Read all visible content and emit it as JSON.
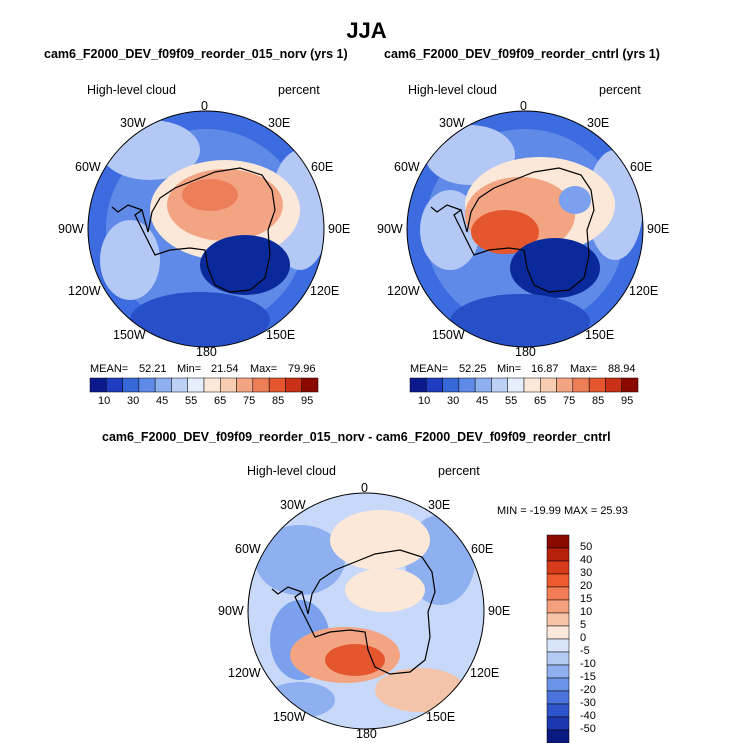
{
  "figure_title": "JJA",
  "colors": {
    "deep_blue": "#0a2a9c",
    "mid_blue": "#3c6ce0",
    "light_blue": "#b4c8f5",
    "cream": "#fbe8d8",
    "light_red": "#f3a583",
    "mid_red": "#e4572e",
    "dark_red": "#8b0a00"
  },
  "panels": [
    {
      "case_title": "cam6_F2000_DEV_f09f09_reorder_015_norv (yrs 1)",
      "variable": "High-level cloud",
      "units": "percent",
      "stats": {
        "mean_label": "MEAN=",
        "mean": "52.21",
        "min_label": "Min=",
        "min": "21.54",
        "max_label": "Max=",
        "max": "79.96"
      },
      "colorbar_labels": [
        "10",
        "30",
        "45",
        "55",
        "65",
        "75",
        "85",
        "95"
      ]
    },
    {
      "case_title": "cam6_F2000_DEV_f09f09_reorder_cntrl (yrs 1)",
      "variable": "High-level cloud",
      "units": "percent",
      "stats": {
        "mean_label": "MEAN=",
        "mean": "52.25",
        "min_label": "Min=",
        "min": "16.87",
        "max_label": "Max=",
        "max": "88.94"
      },
      "colorbar_labels": [
        "10",
        "30",
        "45",
        "55",
        "65",
        "75",
        "85",
        "95"
      ]
    },
    {
      "case_title": "cam6_F2000_DEV_f09f09_reorder_015_norv - cam6_F2000_DEV_f09f09_reorder_cntrl",
      "variable": "High-level cloud",
      "units": "percent",
      "stats_text": "MIN = -19.99 MAX =  25.93",
      "colorbar_labels": [
        "50",
        "40",
        "30",
        "20",
        "15",
        "10",
        "5",
        "0",
        "-5",
        "-10",
        "-15",
        "-20",
        "-30",
        "-40",
        "-50"
      ]
    }
  ],
  "longitude_labels": [
    "0",
    "30E",
    "60E",
    "90E",
    "120E",
    "150E",
    "180",
    "150W",
    "120W",
    "90W",
    "60W",
    "30W"
  ]
}
